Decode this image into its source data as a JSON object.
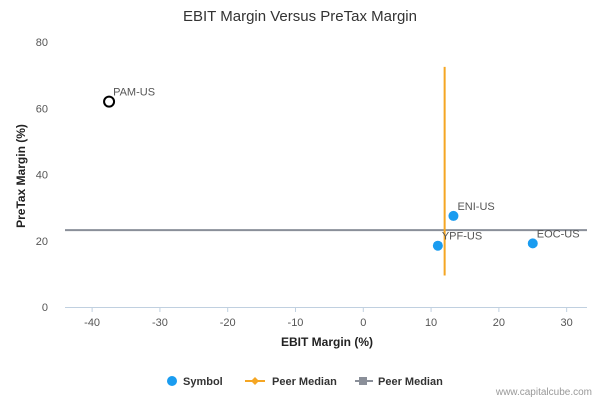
{
  "chart_data": {
    "type": "scatter",
    "title": "EBIT Margin Versus PreTax Margin",
    "xlabel": "EBIT Margin (%)",
    "ylabel": "PreTax Margin (%)",
    "xlim": [
      -44,
      33
    ],
    "ylim": [
      0,
      80
    ],
    "xticks": [
      "-40",
      "-30",
      "-20",
      "-10",
      "0",
      "10",
      "20",
      "30"
    ],
    "yticks": [
      "0",
      "20",
      "40",
      "60",
      "80"
    ],
    "points": [
      {
        "label": "PAM-US",
        "x": -37.5,
        "y": 62,
        "style": "hollow"
      },
      {
        "label": "ENI-US",
        "x": 13.3,
        "y": 27.5,
        "style": "filled"
      },
      {
        "label": "YPF-US",
        "x": 11.0,
        "y": 18.5,
        "style": "filled"
      },
      {
        "label": "EOC-US",
        "x": 25.0,
        "y": 19.2,
        "style": "filled"
      }
    ],
    "peer_median_x": {
      "value": 12.0,
      "y_from": 9.5,
      "y_to": 72.5,
      "color": "#f5a623"
    },
    "peer_median_y": {
      "value": 23.2,
      "color": "#8a8f99"
    },
    "point_color": "#1a9cf0",
    "legend": [
      "Symbol",
      "Peer Median",
      "Peer Median"
    ],
    "credit": "www.capitalcube.com"
  }
}
